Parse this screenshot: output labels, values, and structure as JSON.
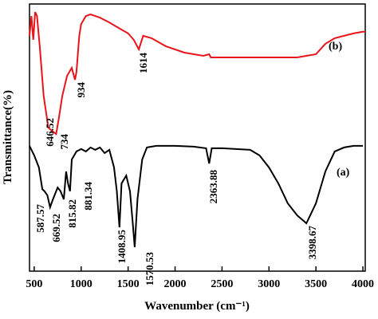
{
  "chart_data": {
    "type": "line",
    "xlabel": "Wavenumber (cm⁻¹)",
    "ylabel": "Transmittance(%)",
    "xlim": [
      450,
      4025
    ],
    "xticks": [
      500,
      1000,
      1500,
      2000,
      2500,
      3000,
      3500,
      4000
    ],
    "ylim": [
      0,
      100
    ],
    "series": [
      {
        "name": "(b)",
        "color": "#e8141b",
        "x": [
          450,
          470,
          490,
          510,
          530,
          560,
          600,
          650,
          700,
          734,
          760,
          800,
          850,
          900,
          934,
          950,
          980,
          1000,
          1050,
          1100,
          1200,
          1300,
          1400,
          1500,
          1560,
          1614,
          1660,
          1750,
          1900,
          2100,
          2300,
          2363,
          2380,
          2500,
          2800,
          2920,
          3000,
          3300,
          3500,
          3600,
          3700,
          3800,
          3900,
          4000,
          4025
        ],
        "values": [
          88.1,
          95.5,
          86.6,
          97.0,
          95.5,
          83.6,
          65.7,
          53.7,
          52.2,
          51.3,
          56.7,
          65.7,
          73.1,
          76.1,
          71.6,
          74.6,
          88.1,
          92.5,
          95.5,
          96.1,
          94.9,
          93.1,
          91.0,
          89.0,
          86.6,
          83.0,
          88.1,
          87.2,
          84.2,
          81.8,
          80.6,
          81.2,
          80.0,
          80.0,
          80.0,
          80.0,
          80.0,
          80.0,
          81.2,
          85.1,
          87.2,
          88.1,
          89.0,
          89.6,
          89.6
        ]
      },
      {
        "name": "(a)",
        "color": "#000000",
        "x": [
          450,
          500,
          550,
          587,
          610,
          640,
          669,
          700,
          750,
          780,
          815,
          840,
          860,
          881,
          900,
          950,
          1000,
          1050,
          1100,
          1150,
          1200,
          1250,
          1300,
          1350,
          1380,
          1408,
          1430,
          1480,
          1520,
          1550,
          1570,
          1600,
          1650,
          1700,
          1800,
          2000,
          2200,
          2330,
          2363,
          2390,
          2500,
          2800,
          2900,
          3000,
          3100,
          3200,
          3300,
          3398,
          3500,
          3600,
          3700,
          3800,
          3900,
          4000
        ],
        "values": [
          46.9,
          43.3,
          38.8,
          30.7,
          29.9,
          28.4,
          23.9,
          26.9,
          31.3,
          29.9,
          26.9,
          37.3,
          32.8,
          29.9,
          41.8,
          44.8,
          45.7,
          44.8,
          46.3,
          45.4,
          46.3,
          44.2,
          45.4,
          38.8,
          29.9,
          16.4,
          32.8,
          35.8,
          29.9,
          17.9,
          9.0,
          26.9,
          41.8,
          46.3,
          46.9,
          46.9,
          46.6,
          46.0,
          40.3,
          46.0,
          46.0,
          45.4,
          43.3,
          38.8,
          32.8,
          25.4,
          20.9,
          17.9,
          25.4,
          37.3,
          44.8,
          46.3,
          46.9,
          46.9
        ]
      }
    ],
    "annotations": [
      "646.52",
      "734",
      "934",
      "1614",
      "587.57",
      "669.52",
      "815.82",
      "881.34",
      "1408.95",
      "1570.53",
      "2363.88",
      "3398.67"
    ]
  }
}
